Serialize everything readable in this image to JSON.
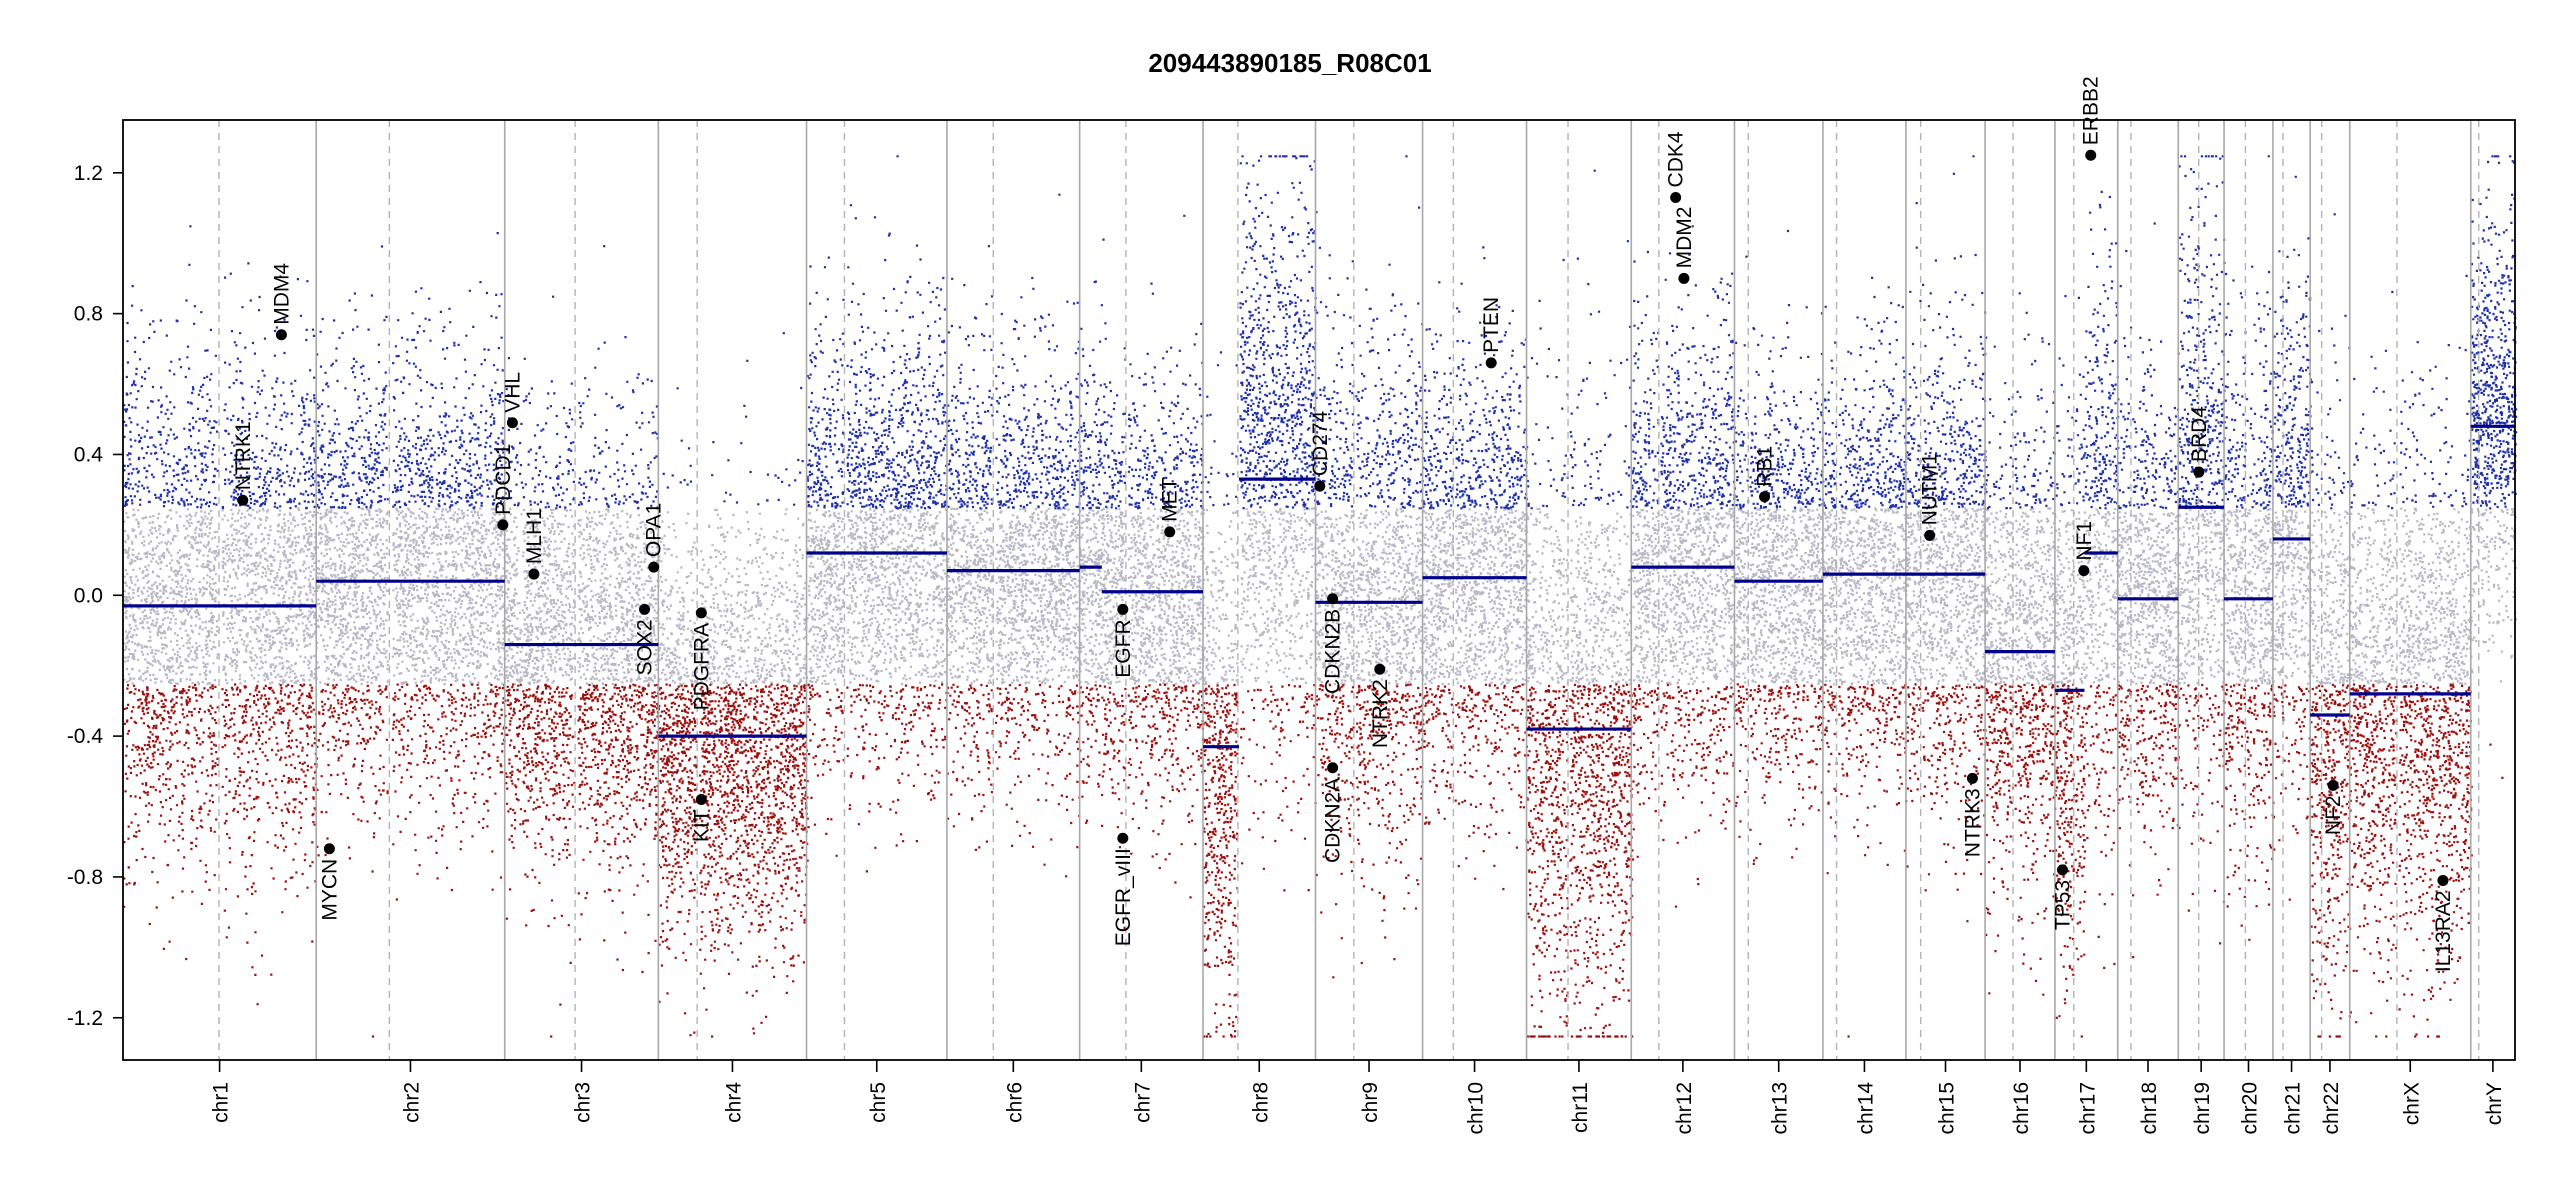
{
  "chart_data": {
    "type": "scatter",
    "title": "209443890185_R08C01",
    "xlabel": "",
    "ylabel": "",
    "ylim": [
      -1.32,
      1.35
    ],
    "y_ticks": [
      -1.2,
      -0.8,
      -0.4,
      0.0,
      0.4,
      0.8,
      1.2
    ],
    "y_tick_labels": [
      "-1.2",
      "-0.8",
      "-0.4",
      "0.0",
      "0.4",
      "0.8",
      "1.2"
    ],
    "clip_limit": 1.25,
    "colors": {
      "gain": "#1f2fa8",
      "loss": "#9c0f0f",
      "neutral": "#b7b7c6",
      "segment": "#00008b",
      "boundary": "#a8a8a8",
      "centromere": "#b3b3b3",
      "gene": "#000000"
    },
    "chromosomes": [
      {
        "name": "chr1",
        "label": "chr1",
        "rel_size": 249,
        "cen": 0.497,
        "noise": 0.34
      },
      {
        "name": "chr2",
        "label": "chr2",
        "rel_size": 243,
        "cen": 0.388,
        "noise": 0.3
      },
      {
        "name": "chr3",
        "label": "chr3",
        "rel_size": 198,
        "cen": 0.458,
        "noise": 0.3
      },
      {
        "name": "chr4",
        "label": "chr4",
        "rel_size": 191,
        "cen": 0.262,
        "noise": 0.3
      },
      {
        "name": "chr5",
        "label": "chr5",
        "rel_size": 181,
        "cen": 0.27,
        "noise": 0.3
      },
      {
        "name": "chr6",
        "label": "chr6",
        "rel_size": 171,
        "cen": 0.349,
        "noise": 0.28
      },
      {
        "name": "chr7",
        "label": "chr7",
        "rel_size": 159,
        "cen": 0.375,
        "noise": 0.28
      },
      {
        "name": "chr8",
        "label": "chr8",
        "rel_size": 145,
        "cen": 0.31,
        "noise": 0.4
      },
      {
        "name": "chr9",
        "label": "chr9",
        "rel_size": 138,
        "cen": 0.358,
        "noise": 0.34
      },
      {
        "name": "chr10",
        "label": "chr10",
        "rel_size": 134,
        "cen": 0.296,
        "noise": 0.3
      },
      {
        "name": "chr11",
        "label": "chr11",
        "rel_size": 135,
        "cen": 0.396,
        "noise": 0.42
      },
      {
        "name": "chr12",
        "label": "chr12",
        "rel_size": 133,
        "cen": 0.267,
        "noise": 0.32
      },
      {
        "name": "chr13",
        "label": "chr13",
        "rel_size": 114,
        "cen": 0.156,
        "noise": 0.28
      },
      {
        "name": "chr14",
        "label": "chr14",
        "rel_size": 107,
        "cen": 0.164,
        "noise": 0.28
      },
      {
        "name": "chr15",
        "label": "chr15",
        "rel_size": 102,
        "cen": 0.186,
        "noise": 0.32
      },
      {
        "name": "chr16",
        "label": "chr16",
        "rel_size": 90,
        "cen": 0.4,
        "noise": 0.32
      },
      {
        "name": "chr17",
        "label": "chr17",
        "rel_size": 81,
        "cen": 0.3,
        "noise": 0.4
      },
      {
        "name": "chr18",
        "label": "chr18",
        "rel_size": 78,
        "cen": 0.218,
        "noise": 0.3
      },
      {
        "name": "chr19",
        "label": "chr19",
        "rel_size": 59,
        "cen": 0.446,
        "noise": 0.4
      },
      {
        "name": "chr20",
        "label": "chr20",
        "rel_size": 63,
        "cen": 0.437,
        "noise": 0.34
      },
      {
        "name": "chr21",
        "label": "chr21",
        "rel_size": 48,
        "cen": 0.27,
        "noise": 0.34
      },
      {
        "name": "chr22",
        "label": "chr22",
        "rel_size": 51,
        "cen": 0.29,
        "noise": 0.4
      },
      {
        "name": "chrX",
        "label": "chrX",
        "rel_size": 156,
        "cen": 0.39,
        "noise": 0.36
      },
      {
        "name": "chrY",
        "label": "chrY",
        "rel_size": 57,
        "cen": 0.18,
        "noise": 0.3
      }
    ],
    "segments": [
      {
        "chr": "chr1",
        "start": 0.0,
        "end": 1.0,
        "value": -0.03
      },
      {
        "chr": "chr2",
        "start": 0.0,
        "end": 1.0,
        "value": 0.04
      },
      {
        "chr": "chr3",
        "start": 0.0,
        "end": 1.0,
        "value": -0.14
      },
      {
        "chr": "chr4",
        "start": 0.0,
        "end": 1.0,
        "value": -0.4
      },
      {
        "chr": "chr5",
        "start": 0.0,
        "end": 1.0,
        "value": 0.12
      },
      {
        "chr": "chr6",
        "start": 0.0,
        "end": 1.0,
        "value": 0.07
      },
      {
        "chr": "chr7",
        "start": 0.0,
        "end": 0.18,
        "value": 0.08
      },
      {
        "chr": "chr7",
        "start": 0.18,
        "end": 1.0,
        "value": 0.01
      },
      {
        "chr": "chr8",
        "start": 0.0,
        "end": 0.32,
        "value": -0.43
      },
      {
        "chr": "chr8",
        "start": 0.32,
        "end": 1.0,
        "value": 0.33
      },
      {
        "chr": "chr9",
        "start": 0.0,
        "end": 1.0,
        "value": -0.02
      },
      {
        "chr": "chr10",
        "start": 0.0,
        "end": 1.0,
        "value": 0.05
      },
      {
        "chr": "chr11",
        "start": 0.0,
        "end": 1.0,
        "value": -0.38
      },
      {
        "chr": "chr12",
        "start": 0.0,
        "end": 1.0,
        "value": 0.08
      },
      {
        "chr": "chr13",
        "start": 0.0,
        "end": 1.0,
        "value": 0.04
      },
      {
        "chr": "chr14",
        "start": 0.0,
        "end": 1.0,
        "value": 0.06
      },
      {
        "chr": "chr15",
        "start": 0.0,
        "end": 1.0,
        "value": 0.06
      },
      {
        "chr": "chr16",
        "start": 0.0,
        "end": 1.0,
        "value": -0.16
      },
      {
        "chr": "chr17",
        "start": 0.0,
        "end": 0.47,
        "value": -0.27
      },
      {
        "chr": "chr17",
        "start": 0.47,
        "end": 1.0,
        "value": 0.12
      },
      {
        "chr": "chr18",
        "start": 0.0,
        "end": 1.0,
        "value": -0.01
      },
      {
        "chr": "chr19",
        "start": 0.0,
        "end": 1.0,
        "value": 0.25
      },
      {
        "chr": "chr20",
        "start": 0.0,
        "end": 1.0,
        "value": -0.01
      },
      {
        "chr": "chr21",
        "start": 0.0,
        "end": 1.0,
        "value": 0.16
      },
      {
        "chr": "chr22",
        "start": 0.0,
        "end": 1.0,
        "value": -0.34
      },
      {
        "chr": "chrX",
        "start": 0.0,
        "end": 1.0,
        "value": -0.28
      },
      {
        "chr": "chrY",
        "start": 0.0,
        "end": 1.0,
        "value": 0.48
      }
    ],
    "genes": [
      {
        "name": "NTRK1",
        "chr": "chr1",
        "pos": 0.62,
        "value": 0.27,
        "label_side": "above"
      },
      {
        "name": "MDM4",
        "chr": "chr1",
        "pos": 0.82,
        "value": 0.74,
        "label_side": "above"
      },
      {
        "name": "MYCN",
        "chr": "chr2",
        "pos": 0.07,
        "value": -0.72,
        "label_side": "below"
      },
      {
        "name": "PDCD1",
        "chr": "chr2",
        "pos": 0.99,
        "value": 0.2,
        "label_side": "above"
      },
      {
        "name": "VHL",
        "chr": "chr3",
        "pos": 0.05,
        "value": 0.49,
        "label_side": "above"
      },
      {
        "name": "MLH1",
        "chr": "chr3",
        "pos": 0.19,
        "value": 0.06,
        "label_side": "above"
      },
      {
        "name": "SOX2",
        "chr": "chr3",
        "pos": 0.91,
        "value": -0.04,
        "label_side": "below"
      },
      {
        "name": "OPA1",
        "chr": "chr3",
        "pos": 0.97,
        "value": 0.08,
        "label_side": "above"
      },
      {
        "name": "PDGFRA",
        "chr": "chr4",
        "pos": 0.29,
        "value": -0.05,
        "label_side": "below"
      },
      {
        "name": "KIT",
        "chr": "chr4",
        "pos": 0.29,
        "value": -0.58,
        "label_side": "below"
      },
      {
        "name": "EGFR",
        "chr": "chr7",
        "pos": 0.35,
        "value": -0.04,
        "label_side": "below"
      },
      {
        "name": "EGFR_vIII",
        "chr": "chr7",
        "pos": 0.35,
        "value": -0.69,
        "label_side": "below"
      },
      {
        "name": "MET",
        "chr": "chr7",
        "pos": 0.73,
        "value": 0.18,
        "label_side": "above"
      },
      {
        "name": "CD274",
        "chr": "chr9",
        "pos": 0.04,
        "value": 0.31,
        "label_side": "above"
      },
      {
        "name": "CDKN2B",
        "chr": "chr9",
        "pos": 0.16,
        "value": -0.01,
        "label_side": "below"
      },
      {
        "name": "CDKN2A",
        "chr": "chr9",
        "pos": 0.16,
        "value": -0.49,
        "label_side": "below"
      },
      {
        "name": "NTRK2",
        "chr": "chr9",
        "pos": 0.6,
        "value": -0.21,
        "label_side": "below"
      },
      {
        "name": "PTEN",
        "chr": "chr10",
        "pos": 0.66,
        "value": 0.66,
        "label_side": "above"
      },
      {
        "name": "MDM2",
        "chr": "chr12",
        "pos": 0.51,
        "value": 0.9,
        "label_side": "above"
      },
      {
        "name": "CDK4",
        "chr": "chr12",
        "pos": 0.43,
        "value": 1.13,
        "label_side": "above"
      },
      {
        "name": "RB1",
        "chr": "chr13",
        "pos": 0.34,
        "value": 0.28,
        "label_side": "above"
      },
      {
        "name": "NUTM1",
        "chr": "chr15",
        "pos": 0.3,
        "value": 0.17,
        "label_side": "above"
      },
      {
        "name": "NTRK3",
        "chr": "chr15",
        "pos": 0.84,
        "value": -0.52,
        "label_side": "below"
      },
      {
        "name": "TP53",
        "chr": "chr17",
        "pos": 0.12,
        "value": -0.78,
        "label_side": "below"
      },
      {
        "name": "NF1",
        "chr": "chr17",
        "pos": 0.46,
        "value": 0.07,
        "label_side": "above"
      },
      {
        "name": "ERBB2",
        "chr": "chr17",
        "pos": 0.57,
        "value": 1.25,
        "label_side": "above"
      },
      {
        "name": "BRD4",
        "chr": "chr19",
        "pos": 0.45,
        "value": 0.35,
        "label_side": "above"
      },
      {
        "name": "NF2",
        "chr": "chr22",
        "pos": 0.58,
        "value": -0.54,
        "label_side": "below"
      },
      {
        "name": "IL13RA2",
        "chr": "chrX",
        "pos": 0.77,
        "value": -0.81,
        "label_side": "below"
      }
    ]
  }
}
